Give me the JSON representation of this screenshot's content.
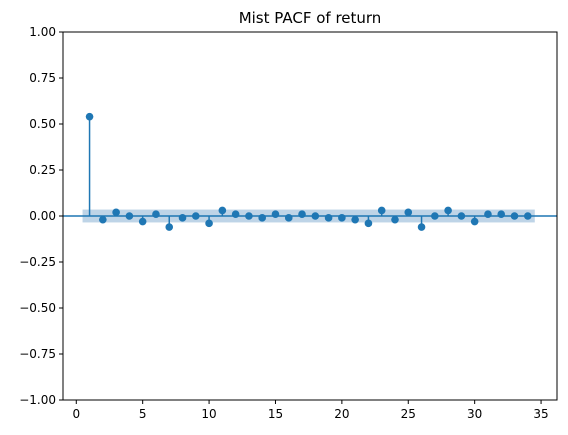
{
  "chart_data": {
    "type": "scatter",
    "subtype": "stem",
    "title": "Mist PACF of return",
    "xlabel": "",
    "ylabel": "",
    "xlim": [
      -1.0,
      36.2
    ],
    "ylim": [
      -1.0,
      1.0
    ],
    "xticks": [
      0,
      5,
      10,
      15,
      20,
      25,
      30,
      35
    ],
    "yticks": [
      -1.0,
      -0.75,
      -0.5,
      -0.25,
      0.0,
      0.25,
      0.5,
      0.75,
      1.0
    ],
    "ytick_labels": [
      "−1.00",
      "−0.75",
      "−0.50",
      "−0.25",
      "0.00",
      "0.25",
      "0.50",
      "0.75",
      "1.00"
    ],
    "grid": false,
    "legend": "none",
    "series": [
      {
        "x": [
          1,
          2,
          3,
          4,
          5,
          6,
          7,
          8,
          9,
          10,
          11,
          12,
          13,
          14,
          15,
          16,
          17,
          18,
          19,
          20,
          21,
          22,
          23,
          24,
          25,
          26,
          27,
          28,
          29,
          30,
          31,
          32,
          33,
          34
        ],
        "values": [
          0.54,
          -0.02,
          0.02,
          0.0,
          -0.03,
          0.01,
          -0.06,
          -0.01,
          0.0,
          -0.04,
          0.03,
          0.01,
          0.0,
          -0.01,
          0.01,
          -0.01,
          0.01,
          0.0,
          -0.01,
          -0.01,
          -0.02,
          -0.04,
          0.03,
          -0.02,
          0.02,
          -0.06,
          0.0,
          0.03,
          0.0,
          -0.03,
          0.01,
          0.01,
          0.0,
          0.0
        ]
      }
    ],
    "confidence_band": {
      "lower": -0.035,
      "upper": 0.035
    },
    "colors": {
      "marker": "#1f77b4",
      "band": "#b3cde3",
      "zero_line": "#1f77b4"
    }
  }
}
